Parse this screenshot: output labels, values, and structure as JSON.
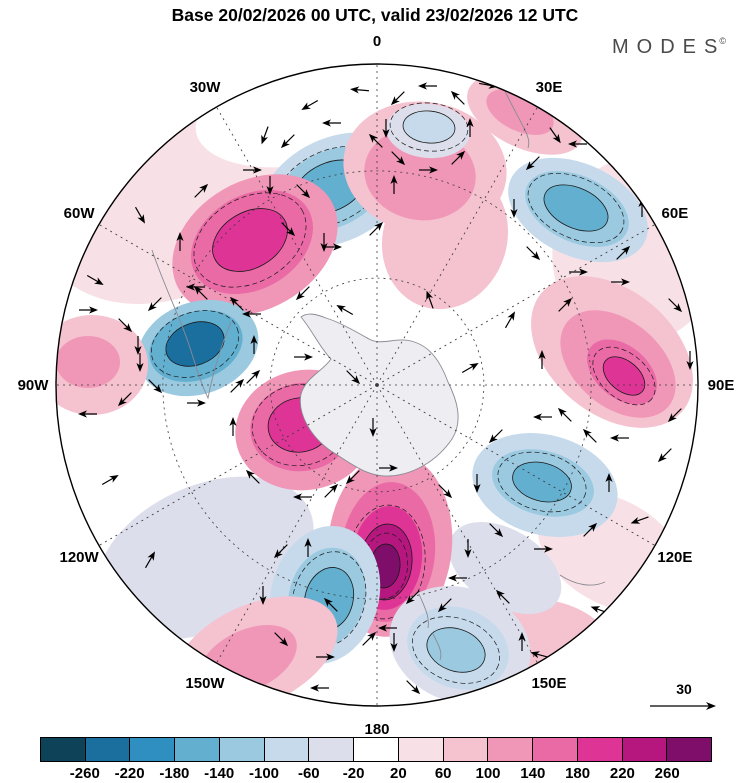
{
  "header": {
    "title": "Base 20/02/2026 00 UTC, valid 23/02/2026 12 UTC",
    "brand": "MODES",
    "brand_sup": "©"
  },
  "chart_data": {
    "type": "heatmap",
    "subtype": "filled-contour anomaly field with wind vectors",
    "projection": "southern-hemisphere polar stereographic",
    "title": "Base 20/02/2026 00 UTC, valid 23/02/2026 12 UTC",
    "longitude_labels": [
      "0",
      "30E",
      "60E",
      "90E",
      "120E",
      "150E",
      "180",
      "150W",
      "120W",
      "90W",
      "60W",
      "30W"
    ],
    "grid": {
      "meridian_step_deg": 30,
      "lat_circle_radii_frac": [
        0.333,
        0.667
      ],
      "style": "dashed"
    },
    "colorbar": {
      "tick_labels": [
        "-260",
        "-220",
        "-180",
        "-140",
        "-100",
        "-60",
        "-20",
        "20",
        "60",
        "100",
        "140",
        "180",
        "220",
        "260"
      ],
      "colors": [
        "#0e4258",
        "#1a6f9e",
        "#2e8fc0",
        "#63afd0",
        "#9ac9e0",
        "#c6daec",
        "#dddeeb",
        "#ffffff",
        "#f8e1e6",
        "#f5c2cf",
        "#f097b8",
        "#ea6aa5",
        "#de3496",
        "#b5177f",
        "#7f0e6b"
      ],
      "level_min": -260,
      "level_max": 260,
      "level_step": 40
    },
    "reference_vector": {
      "label": "30"
    },
    "blob_format": "[cx,cy,rx,ry,rotation_deg,value,has_contour]",
    "anomaly_blobs": [
      [
        160,
        205,
        125,
        95,
        -20,
        20,
        0
      ],
      [
        290,
        118,
        95,
        48,
        -8,
        -20,
        0
      ],
      [
        638,
        250,
        85,
        95,
        15,
        20,
        0
      ],
      [
        118,
        432,
        100,
        78,
        8,
        -20,
        0
      ],
      [
        205,
        558,
        115,
        72,
        -25,
        -60,
        0
      ],
      [
        612,
        552,
        80,
        52,
        30,
        20,
        0
      ],
      [
        545,
        638,
        65,
        38,
        10,
        60,
        0
      ],
      [
        445,
        238,
        62,
        72,
        18,
        60,
        0
      ],
      [
        505,
        568,
        62,
        38,
        32,
        -60,
        0
      ],
      [
        335,
        190,
        78,
        52,
        -25,
        -100,
        0
      ],
      [
        332,
        189,
        58,
        38,
        -25,
        -140,
        0
      ],
      [
        330,
        187,
        38,
        24,
        -25,
        -180,
        1
      ],
      [
        255,
        245,
        88,
        64,
        -30,
        100,
        0
      ],
      [
        252,
        242,
        65,
        47,
        -30,
        140,
        0
      ],
      [
        250,
        240,
        40,
        28,
        -30,
        180,
        1
      ],
      [
        425,
        168,
        82,
        66,
        10,
        60,
        0
      ],
      [
        420,
        174,
        56,
        46,
        10,
        100,
        0
      ],
      [
        428,
        131,
        42,
        27,
        5,
        -60,
        0
      ],
      [
        429,
        127,
        26,
        16,
        5,
        -100,
        1
      ],
      [
        578,
        210,
        74,
        46,
        25,
        -100,
        0
      ],
      [
        577,
        209,
        55,
        33,
        25,
        -140,
        0
      ],
      [
        576,
        208,
        34,
        20,
        25,
        -180,
        1
      ],
      [
        525,
        115,
        62,
        33,
        25,
        60,
        0
      ],
      [
        520,
        112,
        36,
        19,
        25,
        100,
        0
      ],
      [
        612,
        352,
        92,
        62,
        40,
        60,
        0
      ],
      [
        618,
        364,
        66,
        43,
        40,
        100,
        0
      ],
      [
        622,
        372,
        40,
        26,
        40,
        140,
        0
      ],
      [
        624,
        376,
        24,
        15,
        40,
        180,
        1
      ],
      [
        545,
        485,
        74,
        50,
        15,
        -100,
        0
      ],
      [
        543,
        483,
        52,
        32,
        15,
        -140,
        0
      ],
      [
        542,
        482,
        30,
        19,
        15,
        -180,
        1
      ],
      [
        390,
        545,
        62,
        92,
        5,
        100,
        0
      ],
      [
        388,
        552,
        47,
        70,
        5,
        140,
        0
      ],
      [
        387,
        558,
        35,
        52,
        5,
        180,
        0
      ],
      [
        386,
        562,
        26,
        38,
        5,
        220,
        1
      ],
      [
        385,
        566,
        15,
        22,
        5,
        270,
        1
      ],
      [
        325,
        595,
        54,
        70,
        15,
        -100,
        0
      ],
      [
        327,
        597,
        38,
        50,
        15,
        -140,
        0
      ],
      [
        329,
        599,
        24,
        32,
        15,
        -180,
        1
      ],
      [
        305,
        430,
        70,
        60,
        -10,
        100,
        0
      ],
      [
        302,
        427,
        52,
        44,
        -10,
        140,
        0
      ],
      [
        300,
        425,
        32,
        27,
        -10,
        200,
        1
      ],
      [
        198,
        348,
        62,
        46,
        -20,
        -140,
        0
      ],
      [
        196,
        346,
        48,
        34,
        -20,
        -180,
        0
      ],
      [
        195,
        344,
        30,
        21,
        -20,
        -240,
        1
      ],
      [
        92,
        365,
        56,
        50,
        0,
        60,
        0
      ],
      [
        88,
        362,
        32,
        26,
        0,
        100,
        0
      ],
      [
        255,
        655,
        88,
        50,
        -25,
        60,
        0
      ],
      [
        248,
        660,
        52,
        30,
        -25,
        100,
        0
      ],
      [
        460,
        645,
        72,
        57,
        20,
        -60,
        0
      ],
      [
        458,
        648,
        52,
        40,
        20,
        -100,
        0
      ],
      [
        456,
        650,
        30,
        21,
        20,
        -140,
        1
      ]
    ],
    "vector_format": "[x,y,direction_deg]",
    "vectors": [
      [
        394,
        185,
        270
      ],
      [
        376,
        229,
        315
      ],
      [
        332,
        247,
        0
      ],
      [
        288,
        229,
        45
      ],
      [
        270,
        185,
        90
      ],
      [
        288,
        141,
        135
      ],
      [
        332,
        123,
        180
      ],
      [
        376,
        141,
        225
      ],
      [
        324,
        242,
        90
      ],
      [
        303,
        293,
        135
      ],
      [
        252,
        314,
        180
      ],
      [
        201,
        293,
        225
      ],
      [
        180,
        242,
        270
      ],
      [
        201,
        191,
        315
      ],
      [
        252,
        170,
        0
      ],
      [
        303,
        191,
        45
      ],
      [
        470,
        128,
        270
      ],
      [
        458,
        158,
        315
      ],
      [
        428,
        170,
        0
      ],
      [
        398,
        158,
        45
      ],
      [
        386,
        128,
        90
      ],
      [
        398,
        98,
        135
      ],
      [
        428,
        86,
        180
      ],
      [
        458,
        98,
        225
      ],
      [
        642,
        208,
        270
      ],
      [
        623,
        253,
        315
      ],
      [
        578,
        272,
        0
      ],
      [
        533,
        253,
        45
      ],
      [
        514,
        208,
        90
      ],
      [
        533,
        163,
        135
      ],
      [
        578,
        144,
        180
      ],
      [
        623,
        163,
        225
      ],
      [
        690,
        360,
        90
      ],
      [
        675,
        415,
        135
      ],
      [
        620,
        438,
        180
      ],
      [
        565,
        415,
        225
      ],
      [
        542,
        360,
        270
      ],
      [
        565,
        305,
        315
      ],
      [
        620,
        282,
        0
      ],
      [
        675,
        305,
        45
      ],
      [
        609,
        483,
        270
      ],
      [
        590,
        530,
        315
      ],
      [
        543,
        549,
        0
      ],
      [
        496,
        530,
        45
      ],
      [
        477,
        483,
        90
      ],
      [
        496,
        436,
        135
      ],
      [
        543,
        417,
        180
      ],
      [
        590,
        436,
        225
      ],
      [
        468,
        548,
        90
      ],
      [
        445,
        605,
        135
      ],
      [
        388,
        628,
        180
      ],
      [
        331,
        605,
        225
      ],
      [
        308,
        548,
        270
      ],
      [
        331,
        491,
        315
      ],
      [
        388,
        468,
        0
      ],
      [
        445,
        491,
        45
      ],
      [
        369,
        639,
        315
      ],
      [
        325,
        657,
        0
      ],
      [
        281,
        639,
        45
      ],
      [
        263,
        595,
        90
      ],
      [
        281,
        551,
        135
      ],
      [
        373,
        427,
        90
      ],
      [
        353,
        477,
        135
      ],
      [
        303,
        497,
        180
      ],
      [
        253,
        477,
        225
      ],
      [
        233,
        427,
        270
      ],
      [
        253,
        377,
        315
      ],
      [
        303,
        357,
        0
      ],
      [
        353,
        377,
        45
      ],
      [
        254,
        345,
        270
      ],
      [
        237,
        386,
        315
      ],
      [
        196,
        403,
        0
      ],
      [
        155,
        386,
        45
      ],
      [
        138,
        345,
        90
      ],
      [
        155,
        304,
        135
      ],
      [
        196,
        287,
        180
      ],
      [
        237,
        304,
        225
      ],
      [
        522,
        642,
        270
      ],
      [
        413,
        687,
        45
      ],
      [
        394,
        642,
        90
      ],
      [
        413,
        597,
        135
      ],
      [
        458,
        578,
        180
      ],
      [
        503,
        597,
        225
      ],
      [
        140,
        362,
        90
      ],
      [
        125,
        399,
        135
      ],
      [
        88,
        414,
        180
      ],
      [
        125,
        325,
        45
      ],
      [
        88,
        310,
        0
      ],
      [
        360,
        90,
        185
      ],
      [
        310,
        105,
        150
      ],
      [
        265,
        135,
        110
      ],
      [
        488,
        85,
        10
      ],
      [
        555,
        135,
        55
      ],
      [
        665,
        455,
        135
      ],
      [
        640,
        520,
        160
      ],
      [
        600,
        610,
        200
      ],
      [
        540,
        655,
        195
      ],
      [
        320,
        688,
        180
      ],
      [
        150,
        560,
        300
      ],
      [
        110,
        480,
        330
      ],
      [
        95,
        280,
        30
      ],
      [
        140,
        215,
        60
      ],
      [
        510,
        320,
        300
      ],
      [
        430,
        300,
        250
      ],
      [
        470,
        368,
        330
      ],
      [
        345,
        310,
        210
      ]
    ]
  }
}
